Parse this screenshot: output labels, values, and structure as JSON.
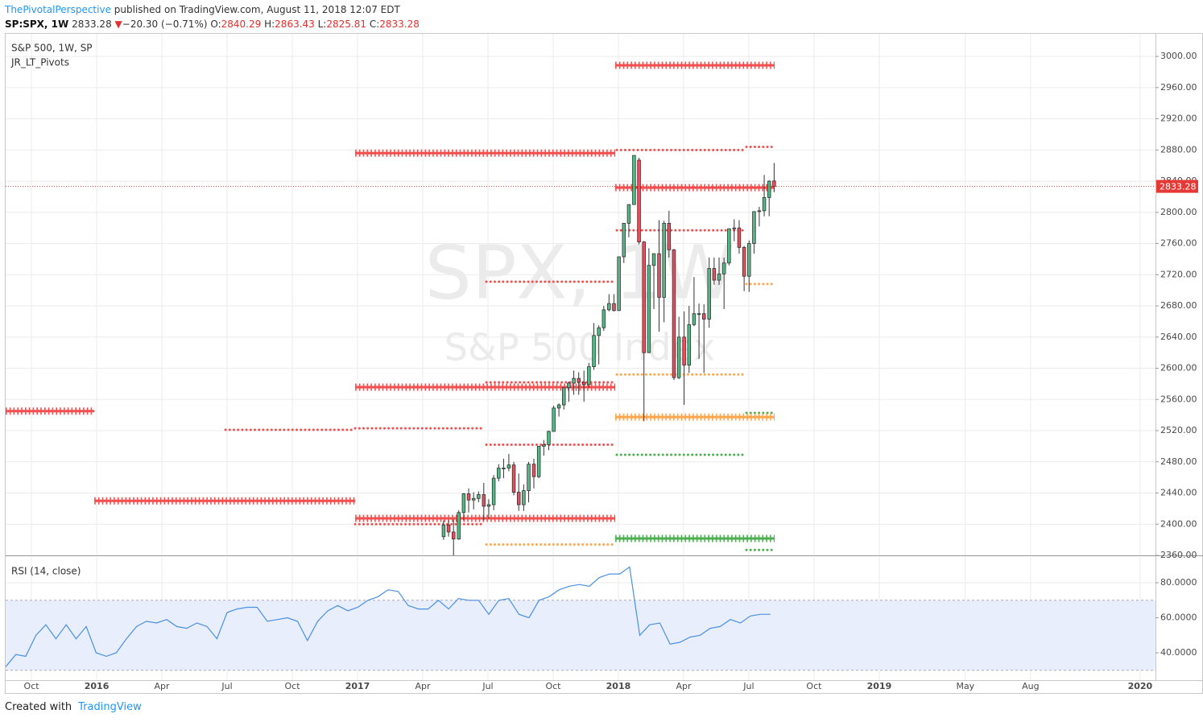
{
  "header": {
    "author": "ThePivotalPerspective",
    "published": "published on TradingView.com, August 11, 2018 12:07 EDT",
    "symbol": "SP:SPX, 1W",
    "last": "2833.28",
    "arrow": "▼",
    "change": "−20.30 (−0.71%)",
    "o_label": "O:",
    "o": "2840.29",
    "h_label": "H:",
    "h": "2863.43",
    "l_label": "L:",
    "l": "2825.81",
    "c_label": "C:",
    "c": "2833.28"
  },
  "footer": {
    "created": "Created with",
    "brand": "TradingView"
  },
  "chart_data": [
    {
      "type": "candlestick",
      "title": "S&P 500, 1W, SP",
      "indicator": "JR_LT_Pivots",
      "watermark": "SPX, 1W",
      "watermark_sub": "S&P 500 Index",
      "xlim": [
        2015.651,
        2020.059
      ],
      "xticks": [
        {
          "value": 2015.75,
          "label": "Oct"
        },
        {
          "value": 2016,
          "label": "2016"
        },
        {
          "value": 2016.25,
          "label": "Apr"
        },
        {
          "value": 2016.5,
          "label": "Jul"
        },
        {
          "value": 2016.75,
          "label": "Oct"
        },
        {
          "value": 2017,
          "label": "2017"
        },
        {
          "value": 2017.25,
          "label": "Apr"
        },
        {
          "value": 2017.5,
          "label": "Jul"
        },
        {
          "value": 2017.75,
          "label": "Oct"
        },
        {
          "value": 2018,
          "label": "2018"
        },
        {
          "value": 2018.25,
          "label": "Apr"
        },
        {
          "value": 2018.5,
          "label": "Jul"
        },
        {
          "value": 2018.75,
          "label": "Oct"
        },
        {
          "value": 2019,
          "label": "2019"
        },
        {
          "value": 2019.33,
          "label": "May"
        },
        {
          "value": 2019.58,
          "label": "Aug"
        },
        {
          "value": 2020,
          "label": "2020"
        }
      ],
      "ylim": [
        2360,
        3029
      ],
      "yticks": [
        {
          "value": 2360,
          "label": "2360.00"
        },
        {
          "value": 2400,
          "label": "2400.00"
        },
        {
          "value": 2440,
          "label": "2440.00"
        },
        {
          "value": 2480,
          "label": "2480.00"
        },
        {
          "value": 2520,
          "label": "2520.00"
        },
        {
          "value": 2560,
          "label": "2560.00"
        },
        {
          "value": 2600,
          "label": "2600.00"
        },
        {
          "value": 2640,
          "label": "2640.00"
        },
        {
          "value": 2680,
          "label": "2680.00"
        },
        {
          "value": 2720,
          "label": "2720.00"
        },
        {
          "value": 2760,
          "label": "2760.00"
        },
        {
          "value": 2800,
          "label": "2800.00"
        },
        {
          "value": 2840,
          "label": "2840.00"
        },
        {
          "value": 2880,
          "label": "2880.00"
        },
        {
          "value": 2920,
          "label": "2920.00"
        },
        {
          "value": 2960,
          "label": "2960.00"
        },
        {
          "value": 3000,
          "label": "3000.00"
        }
      ],
      "grid": true,
      "up_color": "#53b987",
      "down_color": "#eb4d5c",
      "last_label": "2833.28",
      "last_color": "#e53935",
      "x": [
        2017.33,
        2017.349,
        2017.368,
        2017.388,
        2017.407,
        2017.426,
        2017.445,
        2017.464,
        2017.484,
        2017.503,
        2017.522,
        2017.541,
        2017.56,
        2017.58,
        2017.599,
        2017.618,
        2017.637,
        2017.656,
        2017.676,
        2017.695,
        2017.714,
        2017.733,
        2017.752,
        2017.772,
        2017.791,
        2017.81,
        2017.829,
        2017.848,
        2017.868,
        2017.887,
        2017.906,
        2017.925,
        2017.944,
        2017.964,
        2017.983,
        2018.002,
        2018.021,
        2018.04,
        2018.06,
        2018.079,
        2018.098,
        2018.117,
        2018.136,
        2018.156,
        2018.175,
        2018.194,
        2018.213,
        2018.232,
        2018.252,
        2018.271,
        2018.29,
        2018.309,
        2018.328,
        2018.348,
        2018.367,
        2018.386,
        2018.405,
        2018.424,
        2018.444,
        2018.463,
        2018.482,
        2018.501,
        2018.52,
        2018.54,
        2018.559,
        2018.578,
        2018.597
      ],
      "open": [
        2384,
        2399,
        2390,
        2381,
        2415,
        2439,
        2431,
        2433,
        2438,
        2423,
        2425,
        2459,
        2472,
        2472,
        2476,
        2441,
        2425,
        2443,
        2477,
        2461,
        2500,
        2502,
        2519,
        2549,
        2553,
        2575,
        2581,
        2587,
        2582,
        2579,
        2602,
        2642,
        2652,
        2675,
        2683,
        2674,
        2743,
        2786,
        2810,
        2867,
        2762,
        2620,
        2732,
        2747,
        2691,
        2786,
        2752,
        2588,
        2640,
        2604,
        2656,
        2670,
        2670,
        2663,
        2728,
        2713,
        2721,
        2735,
        2779,
        2780,
        2755,
        2718,
        2760,
        2801,
        2802,
        2819,
        2840.29
      ],
      "high": [
        2405,
        2405,
        2406,
        2418,
        2440,
        2446,
        2441,
        2442,
        2453,
        2432,
        2463,
        2477,
        2484,
        2490,
        2480,
        2465,
        2451,
        2480,
        2484,
        2500,
        2508,
        2520,
        2552,
        2555,
        2575,
        2583,
        2597,
        2595,
        2597,
        2607,
        2658,
        2655,
        2680,
        2695,
        2695,
        2743,
        2786,
        2810,
        2873,
        2870,
        2763,
        2754,
        2747,
        2790,
        2789,
        2802,
        2753,
        2666,
        2673,
        2680,
        2717,
        2683,
        2682,
        2742,
        2742,
        2742,
        2742,
        2779,
        2791,
        2790,
        2757,
        2764,
        2801,
        2807,
        2848,
        2841,
        2863.43
      ],
      "low": [
        2380,
        2384,
        2353,
        2380,
        2405,
        2415,
        2419,
        2428,
        2405,
        2407,
        2418,
        2455,
        2459,
        2468,
        2437,
        2417,
        2417,
        2428,
        2446,
        2459,
        2488,
        2495,
        2519,
        2538,
        2547,
        2557,
        2566,
        2566,
        2557,
        2575,
        2598,
        2605,
        2648,
        2673,
        2673,
        2674,
        2735,
        2768,
        2810,
        2759,
        2532,
        2620,
        2676,
        2647,
        2659,
        2742,
        2585,
        2586,
        2553,
        2594,
        2654,
        2612,
        2594,
        2652,
        2707,
        2707,
        2676,
        2732,
        2763,
        2747,
        2699,
        2698,
        2747,
        2782,
        2795,
        2795,
        2825.81
      ],
      "close": [
        2399,
        2390,
        2381,
        2415,
        2439,
        2431,
        2433,
        2438,
        2423,
        2425,
        2459,
        2472,
        2472,
        2476,
        2441,
        2425,
        2443,
        2477,
        2461,
        2500,
        2502,
        2519,
        2549,
        2553,
        2575,
        2581,
        2587,
        2582,
        2579,
        2602,
        2642,
        2652,
        2675,
        2683,
        2674,
        2743,
        2786,
        2810,
        2873,
        2762,
        2620,
        2732,
        2747,
        2691,
        2786,
        2752,
        2588,
        2640,
        2604,
        2656,
        2670,
        2670,
        2663,
        2728,
        2713,
        2721,
        2735,
        2779,
        2780,
        2755,
        2718,
        2760,
        2801,
        2802,
        2819,
        2840,
        2833.28
      ],
      "pivots": [
        {
          "level": 2988.6,
          "start": 2017.988,
          "end": 2018.599,
          "color": "#f44e4e",
          "style": "cross"
        },
        {
          "level": 2876,
          "start": 2016.991,
          "end": 2017.988,
          "color": "#f44e4e",
          "style": "cross"
        },
        {
          "level": 2880,
          "start": 2017.994,
          "end": 2018.485,
          "color": "#f44e4e",
          "style": "dot"
        },
        {
          "level": 2884,
          "start": 2018.491,
          "end": 2018.599,
          "color": "#f44e4e",
          "style": "dot"
        },
        {
          "level": 2831.7,
          "start": 2017.988,
          "end": 2018.599,
          "color": "#f44e4e",
          "style": "cross"
        },
        {
          "level": 2777,
          "start": 2017.994,
          "end": 2018.485,
          "color": "#f44e4e",
          "style": "dot"
        },
        {
          "level": 2711,
          "start": 2017.494,
          "end": 2017.981,
          "color": "#f44e4e",
          "style": "dot"
        },
        {
          "level": 2708,
          "start": 2018.491,
          "end": 2018.599,
          "color": "#ffa64d",
          "style": "dot"
        },
        {
          "level": 2592,
          "start": 2017.994,
          "end": 2018.485,
          "color": "#ffa64d",
          "style": "dot"
        },
        {
          "level": 2582,
          "start": 2017.494,
          "end": 2017.981,
          "color": "#f44e4e",
          "style": "dot"
        },
        {
          "level": 2575.8,
          "start": 2016.991,
          "end": 2017.988,
          "color": "#f44e4e",
          "style": "cross"
        },
        {
          "level": 2545,
          "start": 2015.651,
          "end": 2015.991,
          "color": "#f44e4e",
          "style": "cross"
        },
        {
          "level": 2542.7,
          "start": 2018.491,
          "end": 2018.599,
          "color": "#4caf50",
          "style": "dot"
        },
        {
          "level": 2537.5,
          "start": 2017.988,
          "end": 2018.599,
          "color": "#ffa64d",
          "style": "cross"
        },
        {
          "level": 2523,
          "start": 2016.991,
          "end": 2017.481,
          "color": "#f44e4e",
          "style": "dot"
        },
        {
          "level": 2521,
          "start": 2016.494,
          "end": 2016.985,
          "color": "#f44e4e",
          "style": "dot"
        },
        {
          "level": 2502,
          "start": 2017.494,
          "end": 2017.981,
          "color": "#f44e4e",
          "style": "dot"
        },
        {
          "level": 2489,
          "start": 2017.994,
          "end": 2018.485,
          "color": "#4caf50",
          "style": "dot"
        },
        {
          "level": 2430,
          "start": 2015.991,
          "end": 2016.991,
          "color": "#f44e4e",
          "style": "cross"
        },
        {
          "level": 2407.5,
          "start": 2016.991,
          "end": 2017.988,
          "color": "#f44e4e",
          "style": "cross"
        },
        {
          "level": 2400,
          "start": 2016.991,
          "end": 2017.481,
          "color": "#f44e4e",
          "style": "dot"
        },
        {
          "level": 2381.7,
          "start": 2017.988,
          "end": 2018.599,
          "color": "#4caf50",
          "style": "cross"
        },
        {
          "level": 2374,
          "start": 2017.494,
          "end": 2017.981,
          "color": "#ffa64d",
          "style": "dot"
        },
        {
          "level": 2367,
          "start": 2018.491,
          "end": 2018.599,
          "color": "#4caf50",
          "style": "dot"
        }
      ]
    },
    {
      "type": "line",
      "title": "RSI (14, close)",
      "xlim": [
        2015.651,
        2020.059
      ],
      "ylim": [
        24.4,
        94.7
      ],
      "yticks": [
        {
          "value": 40,
          "label": "40.0000"
        },
        {
          "value": 60,
          "label": "60.0000"
        },
        {
          "value": 80,
          "label": "80.0000"
        }
      ],
      "band": [
        30,
        70
      ],
      "band_color": "#e8eefb",
      "x": [
        2015.651,
        2015.69,
        2015.728,
        2015.767,
        2015.805,
        2015.844,
        2015.883,
        2015.921,
        2015.96,
        2015.998,
        2016.037,
        2016.075,
        2016.114,
        2016.153,
        2016.191,
        2016.23,
        2016.268,
        2016.307,
        2016.345,
        2016.384,
        2016.423,
        2016.461,
        2016.5,
        2016.538,
        2016.577,
        2016.615,
        2016.654,
        2016.693,
        2016.731,
        2016.77,
        2016.808,
        2016.847,
        2016.886,
        2016.924,
        2016.963,
        2017.001,
        2017.04,
        2017.078,
        2017.117,
        2017.156,
        2017.194,
        2017.233,
        2017.271,
        2017.31,
        2017.349,
        2017.387,
        2017.426,
        2017.464,
        2017.503,
        2017.542,
        2017.58,
        2017.619,
        2017.657,
        2017.696,
        2017.734,
        2017.773,
        2017.812,
        2017.85,
        2017.889,
        2017.927,
        2017.966,
        2018.005,
        2018.043,
        2018.082,
        2018.12,
        2018.159,
        2018.198,
        2018.236,
        2018.275,
        2018.313,
        2018.352,
        2018.39,
        2018.429,
        2018.468,
        2018.506,
        2018.545,
        2018.583
      ],
      "series": [
        {
          "name": "RSI",
          "color": "#4a90e2",
          "values": [
            32,
            39,
            38,
            50,
            56,
            48,
            56,
            48,
            55,
            40,
            38,
            40,
            48,
            55,
            58,
            57,
            59,
            55,
            54,
            57,
            55,
            48,
            63,
            65,
            66,
            66,
            58,
            59,
            60,
            58,
            47,
            58,
            64,
            67,
            64,
            66,
            70,
            72,
            76,
            75,
            67,
            65,
            65,
            70,
            65,
            71,
            70,
            70,
            62,
            70,
            71,
            62,
            60,
            70,
            72,
            76,
            78,
            79,
            78,
            83,
            85,
            85,
            89,
            50,
            56,
            57,
            45,
            46,
            49,
            50,
            54,
            55,
            59,
            57,
            61,
            62,
            62
          ]
        }
      ]
    }
  ]
}
